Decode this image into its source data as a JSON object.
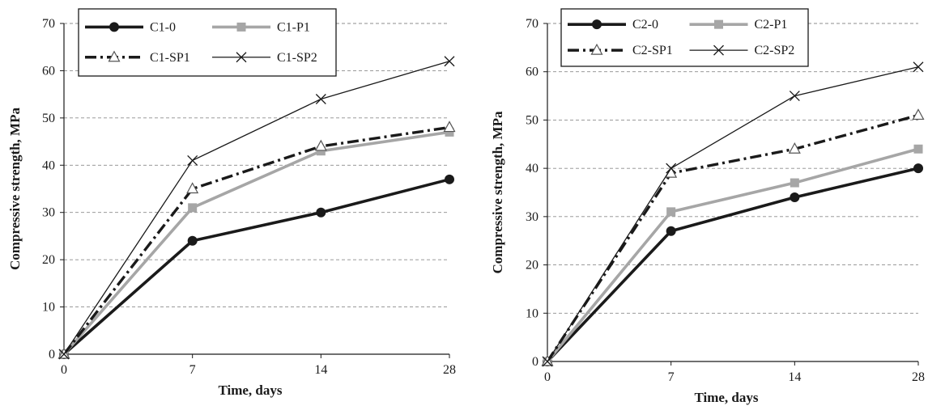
{
  "chart_data": [
    {
      "type": "line",
      "categories": [
        "0",
        "7",
        "14",
        "28"
      ],
      "xlabel": "Time, days",
      "ylabel": "Compressive strength, MPa",
      "ylim": [
        0,
        70
      ],
      "yticks": [
        0,
        10,
        20,
        30,
        40,
        50,
        60,
        70
      ],
      "grid": "horizontal dashed",
      "legend_position": "top-left, inside plot",
      "series": [
        {
          "name": "C1-0",
          "values": [
            0,
            24,
            30,
            37
          ],
          "color": "#1a1a1a",
          "line": "solid-thick",
          "marker": "filled-circle"
        },
        {
          "name": "C1-P1",
          "values": [
            0,
            31,
            43,
            47
          ],
          "color": "#a6a6a6",
          "line": "solid-thick",
          "marker": "filled-square"
        },
        {
          "name": "C1-SP1",
          "values": [
            0,
            35,
            44,
            48
          ],
          "color": "#1a1a1a",
          "line": "dash-dot-thick",
          "marker": "open-triangle"
        },
        {
          "name": "C1-SP2",
          "values": [
            0,
            41,
            54,
            62
          ],
          "color": "#1a1a1a",
          "line": "solid-thin",
          "marker": "cross"
        }
      ]
    },
    {
      "type": "line",
      "categories": [
        "0",
        "7",
        "14",
        "28"
      ],
      "xlabel": "Time, days",
      "ylabel": "Compressive strength, MPa",
      "ylim": [
        0,
        70
      ],
      "yticks": [
        0,
        10,
        20,
        30,
        40,
        50,
        60,
        70
      ],
      "grid": "horizontal dashed",
      "legend_position": "top-left, inside plot",
      "series": [
        {
          "name": "C2-0",
          "values": [
            0,
            27,
            34,
            40
          ],
          "color": "#1a1a1a",
          "line": "solid-thick",
          "marker": "filled-circle"
        },
        {
          "name": "C2-P1",
          "values": [
            0,
            31,
            37,
            44
          ],
          "color": "#a6a6a6",
          "line": "solid-thick",
          "marker": "filled-square"
        },
        {
          "name": "C2-SP1",
          "values": [
            0,
            39,
            44,
            51
          ],
          "color": "#1a1a1a",
          "line": "dash-dot-thick",
          "marker": "open-triangle"
        },
        {
          "name": "C2-SP2",
          "values": [
            0,
            40,
            55,
            61
          ],
          "color": "#1a1a1a",
          "line": "solid-thin",
          "marker": "cross"
        }
      ]
    }
  ]
}
